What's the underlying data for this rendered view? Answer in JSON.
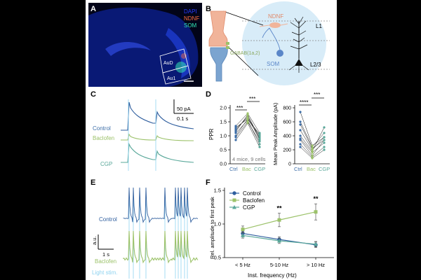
{
  "panels": {
    "A": {
      "letter": "A",
      "legend": [
        {
          "text": "DAPI",
          "color": "#2a3cff"
        },
        {
          "text": "NDNF",
          "color": "#ff6e3c"
        },
        {
          "text": "SOM",
          "color": "#33e6b4"
        }
      ],
      "regions": [
        "AuD",
        "Au1"
      ]
    },
    "B": {
      "letter": "B",
      "ndnf_label": "NDNF",
      "som_label": "SOM",
      "gabab_label": "GABAB(1a,2)",
      "layer1": "L1",
      "layer23": "L2/3"
    },
    "C": {
      "letter": "C",
      "scale_current": "50 pA",
      "scale_time": "0.1 s",
      "conditions": [
        {
          "label": "Control",
          "color": "#3d6ea8"
        },
        {
          "label": "Baclofen",
          "color": "#9cc26a"
        },
        {
          "label": "CGP",
          "color": "#5aa89a"
        }
      ]
    },
    "D": {
      "letter": "D",
      "note": "4 mice, 9 cells",
      "ppr": {
        "ylabel": "PPR",
        "yticks": [
          "0.0",
          "0.5",
          "1.0",
          "1.5",
          "2.0"
        ],
        "ylim": [
          0,
          2.0
        ],
        "sig_ctrl_bac": "***",
        "sig_bac_cgp": "***"
      },
      "amp": {
        "ylabel": "Mean Peak Amplitude (pA)",
        "yticks": [
          "0",
          "200",
          "400",
          "600",
          "800"
        ],
        "ylim": [
          0,
          800
        ],
        "sig_ctrl_bac": "****",
        "sig_bac_cgp": "***"
      },
      "categories": [
        {
          "label": "Ctrl",
          "color": "#3d6ea8"
        },
        {
          "label": "Bac",
          "color": "#9cc26a"
        },
        {
          "label": "CGP",
          "color": "#5aa89a"
        }
      ]
    },
    "E": {
      "letter": "E",
      "scale_amp": "a.u.",
      "scale_time": "1 s",
      "control_label": "Control",
      "baclofen_label": "Baclofen",
      "stim_label": "Light stim."
    },
    "F": {
      "letter": "F"
    }
  },
  "chart_data": {
    "type": "line",
    "categories": [
      "< 5 Hz",
      "5-10 Hz",
      "> 10 Hz"
    ],
    "xlabel": "Inst. frequency (Hz)",
    "ylabel": "Rel. amplitude to first peak",
    "ylim": [
      0.5,
      1.5
    ],
    "yticks": [
      "0.5",
      "1.0",
      "1.5"
    ],
    "legend_position": "top-left",
    "significance": [
      "",
      "**",
      "**"
    ],
    "series": [
      {
        "name": "Control",
        "color": "#2f5e9e",
        "marker": "circle",
        "values": [
          0.86,
          0.77,
          0.69
        ],
        "err": [
          0.03,
          0.04,
          0.04
        ]
      },
      {
        "name": "Baclofen",
        "color": "#9cc26a",
        "marker": "square",
        "values": [
          0.92,
          1.06,
          1.18
        ],
        "err": [
          0.05,
          0.1,
          0.12
        ]
      },
      {
        "name": "CGP",
        "color": "#5aa89a",
        "marker": "triangle",
        "values": [
          0.83,
          0.75,
          0.7
        ],
        "err": [
          0.04,
          0.04,
          0.04
        ]
      }
    ]
  }
}
